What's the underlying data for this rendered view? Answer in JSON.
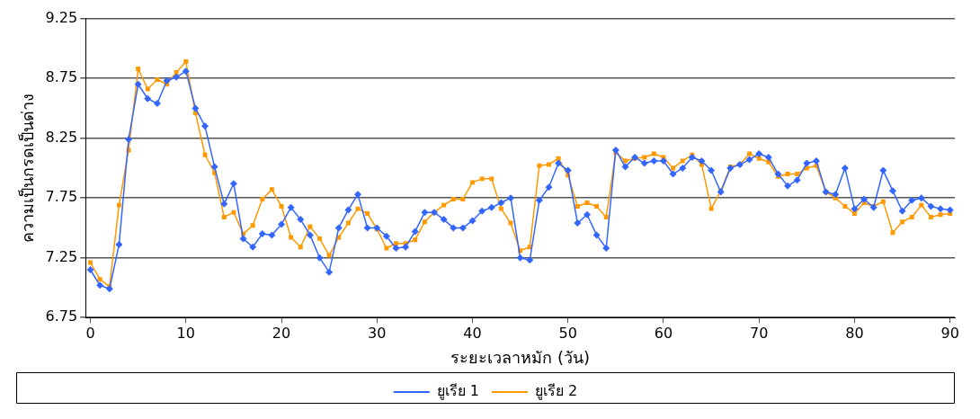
{
  "chart_data": {
    "type": "line",
    "xlabel": "ระยะเวลาหมัก (วัน)",
    "ylabel": "ความเป็นกรดเป็นด่าง",
    "x": [
      0,
      1,
      2,
      3,
      4,
      5,
      6,
      7,
      8,
      9,
      10,
      11,
      12,
      13,
      14,
      15,
      16,
      17,
      18,
      19,
      20,
      21,
      22,
      23,
      24,
      25,
      26,
      27,
      28,
      29,
      30,
      31,
      32,
      33,
      34,
      35,
      36,
      37,
      38,
      39,
      40,
      41,
      42,
      43,
      44,
      45,
      46,
      47,
      48,
      49,
      50,
      51,
      52,
      53,
      54,
      55,
      56,
      57,
      58,
      59,
      60,
      61,
      62,
      63,
      64,
      65,
      66,
      67,
      68,
      69,
      70,
      71,
      72,
      73,
      74,
      75,
      76,
      77,
      78,
      79,
      80,
      81,
      82,
      83,
      84,
      85,
      86,
      87,
      88,
      89,
      90
    ],
    "series": [
      {
        "name": "ยูเรีย 1",
        "color": "#3366ff",
        "marker": "diamond",
        "values": [
          7.15,
          7.02,
          6.99,
          7.36,
          8.24,
          8.7,
          8.58,
          8.54,
          8.73,
          8.76,
          8.81,
          8.5,
          8.35,
          8.01,
          7.7,
          7.87,
          7.41,
          7.34,
          7.45,
          7.44,
          7.53,
          7.67,
          7.57,
          7.44,
          7.25,
          7.13,
          7.5,
          7.65,
          7.78,
          7.5,
          7.5,
          7.43,
          7.33,
          7.34,
          7.47,
          7.63,
          7.63,
          7.57,
          7.5,
          7.5,
          7.56,
          7.64,
          7.67,
          7.71,
          7.75,
          7.25,
          7.23,
          7.73,
          7.84,
          8.04,
          7.98,
          7.54,
          7.61,
          7.44,
          7.33,
          8.15,
          8.01,
          8.09,
          8.04,
          8.06,
          8.06,
          7.95,
          8.0,
          8.09,
          8.06,
          7.98,
          7.8,
          8.0,
          8.03,
          8.07,
          8.12,
          8.09,
          7.95,
          7.85,
          7.9,
          8.04,
          8.06,
          7.8,
          7.78,
          8.0,
          7.66,
          7.74,
          7.67,
          7.98,
          7.81,
          7.64,
          7.73,
          7.75,
          7.68,
          7.66,
          7.65
        ]
      },
      {
        "name": "ยูเรีย 2",
        "color": "#ff9900",
        "marker": "square",
        "values": [
          7.21,
          7.07,
          7.01,
          7.69,
          8.15,
          8.83,
          8.66,
          8.74,
          8.7,
          8.8,
          8.89,
          8.46,
          8.11,
          7.96,
          7.59,
          7.63,
          7.45,
          7.52,
          7.74,
          7.82,
          7.68,
          7.42,
          7.34,
          7.51,
          7.41,
          7.27,
          7.42,
          7.54,
          7.66,
          7.62,
          7.49,
          7.33,
          7.37,
          7.37,
          7.4,
          7.55,
          7.63,
          7.69,
          7.74,
          7.74,
          7.88,
          7.91,
          7.91,
          7.66,
          7.54,
          7.31,
          7.34,
          8.02,
          8.03,
          8.08,
          7.94,
          7.68,
          7.71,
          7.68,
          7.59,
          8.13,
          8.06,
          8.08,
          8.09,
          8.12,
          8.09,
          8.0,
          8.06,
          8.11,
          8.03,
          7.66,
          7.81,
          8.01,
          8.03,
          8.12,
          8.08,
          8.05,
          7.93,
          7.95,
          7.95,
          8.0,
          8.02,
          7.8,
          7.75,
          7.68,
          7.62,
          7.71,
          7.68,
          7.72,
          7.46,
          7.55,
          7.59,
          7.69,
          7.59,
          7.61,
          7.62
        ]
      }
    ],
    "xlim": [
      -0.5,
      90.5
    ],
    "xticks": [
      0,
      10,
      20,
      30,
      40,
      50,
      60,
      70,
      80,
      90
    ],
    "ylim": [
      6.75,
      9.25
    ],
    "yticks": [
      6.75,
      7.25,
      7.75,
      8.25,
      8.75,
      9.25
    ],
    "grid": "y",
    "legend": "bottom",
    "line_style": "solid"
  }
}
